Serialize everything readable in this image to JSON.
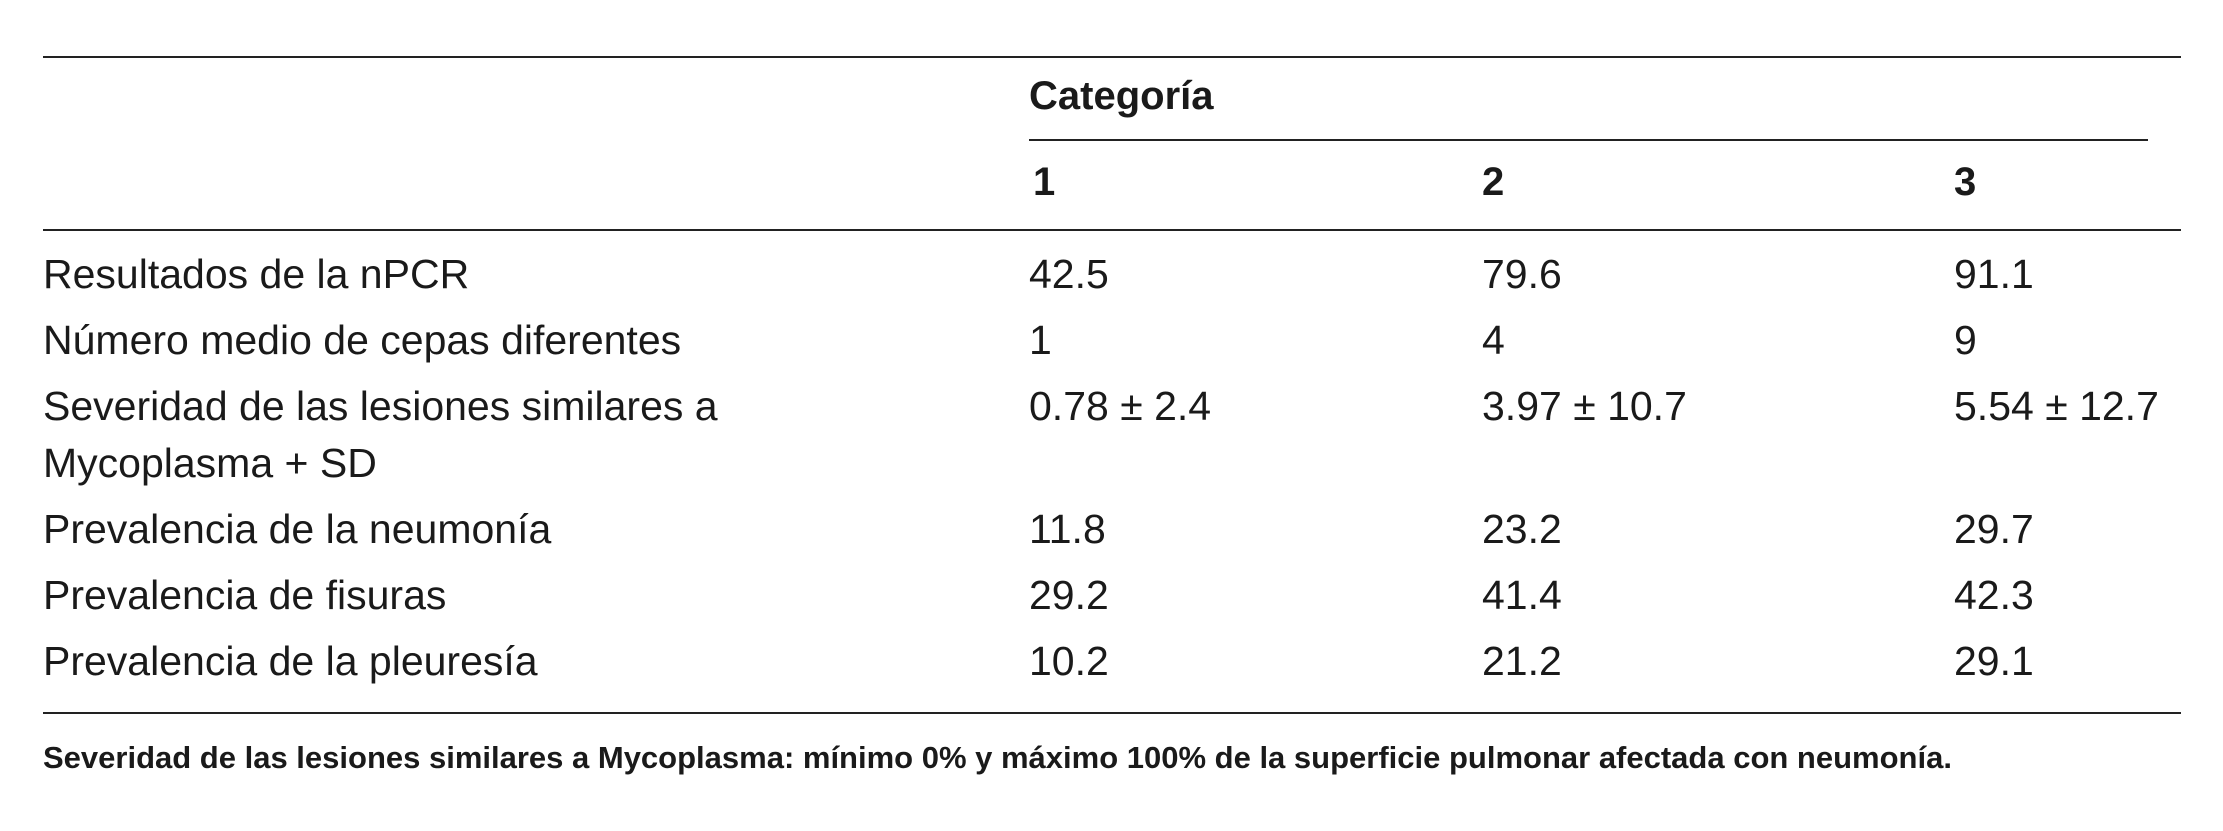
{
  "table": {
    "group_header": "Categoría",
    "columns": [
      "1",
      "2",
      "3"
    ],
    "rows": [
      [
        "Resultados de la nPCR",
        "42.5",
        "79.6",
        "91.1"
      ],
      [
        "Número medio de cepas diferentes",
        "1",
        "4",
        "9"
      ],
      [
        "Severidad de las lesiones similares a Mycoplasma + SD",
        "0.78 ± 2.4",
        "3.97 ± 10.7",
        "5.54 ± 12.7"
      ],
      [
        "Prevalencia de la neumonía",
        "11.8",
        "23.2",
        "29.7"
      ],
      [
        "Prevalencia de fisuras",
        "29.2",
        "41.4",
        "42.3"
      ],
      [
        "Prevalencia de la pleuresía",
        "10.2",
        "21.2",
        "29.1"
      ]
    ],
    "footnote": "Severidad de las lesiones similares a Mycoplasma: mínimo 0% y máximo 100% de la superficie pulmonar afectada con neumonía."
  }
}
